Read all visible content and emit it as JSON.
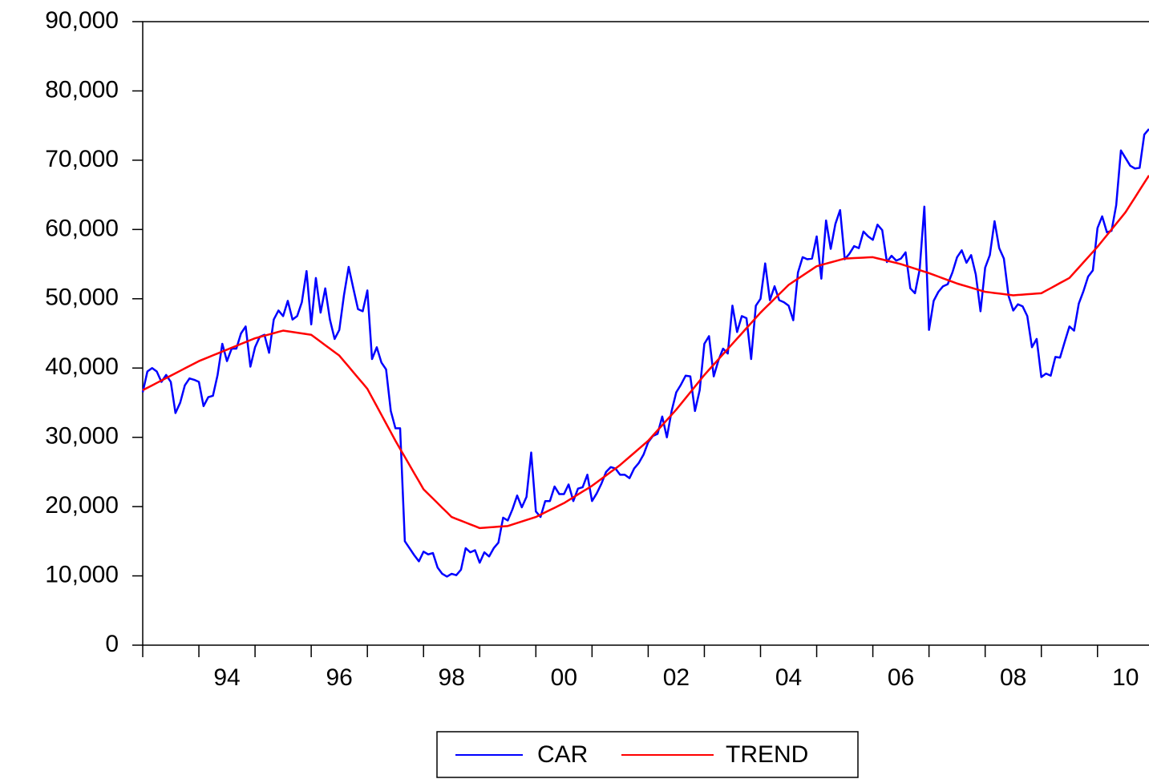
{
  "chart_data": {
    "type": "line",
    "x": [
      1993,
      1993.083,
      1993.167,
      1993.25,
      1993.333,
      1993.417,
      1993.5,
      1993.583,
      1993.667,
      1993.75,
      1993.833,
      1993.917,
      1994,
      1994.083,
      1994.167,
      1994.25,
      1994.333,
      1994.417,
      1994.5,
      1994.583,
      1994.667,
      1994.75,
      1994.833,
      1994.917,
      1995,
      1995.083,
      1995.167,
      1995.25,
      1995.333,
      1995.417,
      1995.5,
      1995.583,
      1995.667,
      1995.75,
      1995.833,
      1995.917,
      1996,
      1996.083,
      1996.167,
      1996.25,
      1996.333,
      1996.417,
      1996.5,
      1996.583,
      1996.667,
      1996.75,
      1996.833,
      1996.917,
      1997,
      1997.083,
      1997.167,
      1997.25,
      1997.333,
      1997.417,
      1997.5,
      1997.583,
      1997.667,
      1997.75,
      1997.833,
      1997.917,
      1998,
      1998.083,
      1998.167,
      1998.25,
      1998.333,
      1998.417,
      1998.5,
      1998.583,
      1998.667,
      1998.75,
      1998.833,
      1998.917,
      1999,
      1999.083,
      1999.167,
      1999.25,
      1999.333,
      1999.417,
      1999.5,
      1999.583,
      1999.667,
      1999.75,
      1999.833,
      1999.917,
      2000,
      2000.083,
      2000.167,
      2000.25,
      2000.333,
      2000.417,
      2000.5,
      2000.583,
      2000.667,
      2000.75,
      2000.833,
      2000.917,
      2001,
      2001.083,
      2001.167,
      2001.25,
      2001.333,
      2001.417,
      2001.5,
      2001.583,
      2001.667,
      2001.75,
      2001.833,
      2001.917,
      2002,
      2002.083,
      2002.167,
      2002.25,
      2002.333,
      2002.417,
      2002.5,
      2002.583,
      2002.667,
      2002.75,
      2002.833,
      2002.917,
      2003,
      2003.083,
      2003.167,
      2003.25,
      2003.333,
      2003.417,
      2003.5,
      2003.583,
      2003.667,
      2003.75,
      2003.833,
      2003.917,
      2004,
      2004.083,
      2004.167,
      2004.25,
      2004.333,
      2004.417,
      2004.5,
      2004.583,
      2004.667,
      2004.75,
      2004.833,
      2004.917,
      2005,
      2005.083,
      2005.167,
      2005.25,
      2005.333,
      2005.417,
      2005.5,
      2005.583,
      2005.667,
      2005.75,
      2005.833,
      2005.917,
      2006,
      2006.083,
      2006.167,
      2006.25,
      2006.333,
      2006.417,
      2006.5,
      2006.583,
      2006.667,
      2006.75,
      2006.833,
      2006.917,
      2007,
      2007.083,
      2007.167,
      2007.25,
      2007.333,
      2007.417,
      2007.5,
      2007.583,
      2007.667,
      2007.75,
      2007.833,
      2007.917,
      2008,
      2008.083,
      2008.167,
      2008.25,
      2008.333,
      2008.417,
      2008.5,
      2008.583,
      2008.667,
      2008.75,
      2008.833,
      2008.917,
      2009,
      2009.083,
      2009.167,
      2009.25,
      2009.333,
      2009.417,
      2009.5,
      2009.583,
      2009.667,
      2009.75,
      2009.833,
      2009.917,
      2010,
      2010.083,
      2010.167,
      2010.25,
      2010.333,
      2010.417,
      2010.5,
      2010.583,
      2010.667,
      2010.75,
      2010.833,
      2010.917
    ],
    "series": [
      {
        "name": "CAR",
        "color": "#0000ff",
        "values": [
          36500,
          39500,
          40000,
          39500,
          38000,
          39000,
          38000,
          33500,
          35000,
          37500,
          38500,
          38300,
          38000,
          34500,
          35800,
          36000,
          39000,
          43500,
          41000,
          42800,
          42800,
          45000,
          46000,
          40200,
          43000,
          44500,
          44800,
          42200,
          47000,
          48300,
          47500,
          49700,
          47000,
          47500,
          49500,
          54000,
          46300,
          53000,
          48000,
          51500,
          47000,
          44200,
          45500,
          50500,
          54600,
          51500,
          48500,
          48200,
          51200,
          41300,
          43000,
          40800,
          39800,
          33800,
          31300,
          31300,
          15000,
          14000,
          13000,
          12100,
          13500,
          13100,
          13300,
          11200,
          10300,
          9900,
          10300,
          10100,
          10900,
          14000,
          13400,
          13700,
          11900,
          13400,
          12800,
          14000,
          14800,
          18400,
          18000,
          19600,
          21600,
          19900,
          21400,
          27800,
          19300,
          18500,
          20800,
          20800,
          22900,
          21800,
          21800,
          23200,
          20800,
          22600,
          22800,
          24600,
          20800,
          21900,
          23300,
          25000,
          25700,
          25500,
          24600,
          24600,
          24100,
          25500,
          26300,
          27500,
          29300,
          30200,
          30500,
          33000,
          30000,
          33800,
          36500,
          37600,
          38900,
          38800,
          33800,
          36800,
          43500,
          44600,
          38800,
          41100,
          42800,
          42100,
          49000,
          45200,
          47500,
          47200,
          41300,
          49000,
          50000,
          55100,
          49800,
          51800,
          49800,
          49500,
          49000,
          46900,
          53800,
          56000,
          55700,
          55800,
          59000,
          52900,
          61300,
          57200,
          60800,
          62800,
          55700,
          56500,
          57600,
          57300,
          59700,
          59000,
          58500,
          60700,
          59900,
          55300,
          56200,
          55500,
          55800,
          56700,
          51500,
          50800,
          54200,
          63300,
          45500,
          49700,
          51000,
          51800,
          52100,
          53800,
          56000,
          57000,
          55200,
          56300,
          53500,
          48200,
          54500,
          56300,
          61200,
          57300,
          55800,
          50400,
          48300,
          49200,
          48900,
          47500,
          43000,
          44200,
          38700,
          39200,
          38900,
          41600,
          41500,
          43800,
          46000,
          45400,
          49300,
          51100,
          53200,
          54100,
          60200,
          61900,
          59600,
          59800,
          63500,
          71400,
          70300,
          69200,
          68800,
          68900,
          73700,
          74500
        ]
      },
      {
        "name": "TREND",
        "color": "#ff0000",
        "values": [
          36800,
          37150,
          37500,
          37850,
          38200,
          38550,
          38900,
          39250,
          39600,
          39950,
          40300,
          40650,
          41000,
          41280,
          41550,
          41830,
          42100,
          42380,
          42650,
          42930,
          43200,
          43480,
          43750,
          44030,
          44300,
          44480,
          44670,
          44850,
          45030,
          45220,
          45400,
          45300,
          45200,
          45100,
          45000,
          44900,
          44800,
          44300,
          43800,
          43300,
          42800,
          42300,
          41800,
          41000,
          40200,
          39400,
          38600,
          37800,
          37000,
          35750,
          34500,
          33250,
          32000,
          30750,
          29500,
          28330,
          27170,
          26000,
          24830,
          23670,
          22500,
          21830,
          21170,
          20500,
          19830,
          19170,
          18500,
          18230,
          17970,
          17700,
          17430,
          17170,
          16900,
          16950,
          17000,
          17050,
          17100,
          17150,
          17200,
          17420,
          17630,
          17850,
          18070,
          18280,
          18500,
          18830,
          19170,
          19500,
          19830,
          20170,
          20500,
          20920,
          21330,
          21750,
          22170,
          22580,
          23000,
          23500,
          24000,
          24500,
          25000,
          25500,
          26000,
          26580,
          27170,
          27750,
          28330,
          28920,
          29500,
          30250,
          31000,
          31750,
          32500,
          33250,
          34000,
          34830,
          35670,
          36500,
          37330,
          38170,
          39000,
          39750,
          40500,
          41250,
          42000,
          42750,
          43500,
          44250,
          45000,
          45750,
          46500,
          47250,
          48000,
          48670,
          49330,
          50000,
          50670,
          51330,
          52000,
          52450,
          52900,
          53350,
          53800,
          54250,
          54700,
          54880,
          55070,
          55250,
          55430,
          55620,
          55800,
          55830,
          55870,
          55900,
          55930,
          55970,
          56000,
          55830,
          55670,
          55500,
          55330,
          55170,
          55000,
          54780,
          54570,
          54350,
          54130,
          53920,
          53700,
          53450,
          53200,
          52950,
          52700,
          52450,
          52200,
          52000,
          51800,
          51600,
          51400,
          51200,
          51000,
          50920,
          50830,
          50750,
          50670,
          50580,
          50500,
          50550,
          50600,
          50650,
          50700,
          50750,
          50800,
          51170,
          51530,
          51900,
          52270,
          52630,
          53000,
          53750,
          54500,
          55250,
          56000,
          56750,
          57500,
          58330,
          59170,
          60000,
          60830,
          61670,
          62500,
          63560,
          64620,
          65680,
          66740,
          67800
        ]
      }
    ],
    "xlim": [
      1993,
      2010.917
    ],
    "xticks": [
      {
        "value": 1994.5,
        "label": "94"
      },
      {
        "value": 1996.5,
        "label": "96"
      },
      {
        "value": 1998.5,
        "label": "98"
      },
      {
        "value": 2000.5,
        "label": "00"
      },
      {
        "value": 2002.5,
        "label": "02"
      },
      {
        "value": 2004.5,
        "label": "04"
      },
      {
        "value": 2006.5,
        "label": "06"
      },
      {
        "value": 2008.5,
        "label": "08"
      },
      {
        "value": 2010.5,
        "label": "10"
      }
    ],
    "xtick_marks": [
      1993,
      1994,
      1995,
      1996,
      1997,
      1998,
      1999,
      2000,
      2001,
      2002,
      2003,
      2004,
      2005,
      2006,
      2007,
      2008,
      2009,
      2010
    ],
    "ylim": [
      0,
      90000
    ],
    "yticks": [
      0,
      {
        "value": 10000,
        "label": "10,000"
      },
      {
        "value": 20000,
        "label": "20,000"
      },
      {
        "value": 30000,
        "label": "30,000"
      },
      {
        "value": 40000,
        "label": "40,000"
      },
      {
        "value": 50000,
        "label": "50,000"
      },
      {
        "value": 60000,
        "label": "60,000"
      },
      {
        "value": 70000,
        "label": "70,000"
      },
      {
        "value": 80000,
        "label": "80,000"
      },
      {
        "value": 90000,
        "label": "90,000"
      }
    ],
    "grid": false,
    "legend": "bottom"
  }
}
